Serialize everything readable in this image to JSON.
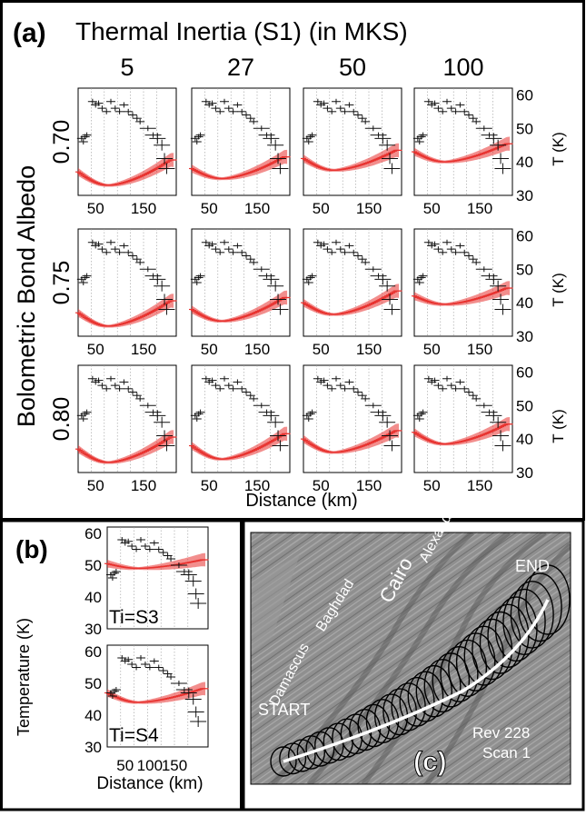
{
  "panel_a": {
    "label": "(a)",
    "title": "Thermal Inertia (S1) (in MKS)",
    "ti_values": [
      "5",
      "27",
      "50",
      "100"
    ],
    "albedo_label": "Bolometric Bond Albedo",
    "albedo_values": [
      "0.70",
      "0.75",
      "0.80"
    ],
    "y_ticks": [
      "60",
      "50",
      "40",
      "30"
    ],
    "y_axis_label": "T (K)",
    "x_ticks": [
      "50",
      "150"
    ],
    "x_axis_label": "Distance (km)"
  },
  "panel_b": {
    "label": "(b)",
    "y_axis_label": "Temperature (K)",
    "y_ticks": [
      "60",
      "50",
      "40",
      "30"
    ],
    "x_ticks": [
      "50",
      "100",
      "150"
    ],
    "x_axis_label": "Distance (km)",
    "plot_labels": [
      "Ti=S3",
      "Ti=S4"
    ]
  },
  "panel_c": {
    "label": "(c)",
    "stripes": [
      "Damascus",
      "Baghdad",
      "Cairo",
      "Alexandria"
    ],
    "start_label": "START",
    "end_label": "END",
    "rev_line1": "Rev 228",
    "rev_line2": "Scan 1"
  },
  "chart_data": {
    "type": "scatter",
    "xlim": [
      0,
      225
    ],
    "ylim": [
      30,
      62
    ],
    "observed": {
      "x": [
        8,
        12,
        16,
        20,
        33,
        40,
        47,
        55,
        65,
        75,
        85,
        95,
        105,
        115,
        125,
        135,
        142,
        160,
        172,
        182,
        192,
        198,
        203
      ],
      "y": [
        47,
        46,
        47.5,
        48,
        58,
        57,
        57.5,
        56,
        55,
        58,
        56,
        55,
        57,
        55,
        54,
        53,
        52,
        50,
        48,
        47,
        45,
        41,
        38
      ]
    },
    "model_grid": [
      {
        "albedo": "0.70",
        "models": [
          {
            "ti": "5",
            "min": 33,
            "ends": [
              37,
              40
            ]
          },
          {
            "ti": "27",
            "min": 35,
            "ends": [
              38,
              41
            ]
          },
          {
            "ti": "50",
            "min": 37.5,
            "ends": [
              41,
              43
            ]
          },
          {
            "ti": "100",
            "min": 40,
            "ends": [
              43,
              45
            ]
          }
        ]
      },
      {
        "albedo": "0.75",
        "models": [
          {
            "ti": "5",
            "min": 33,
            "ends": [
              37,
              40
            ]
          },
          {
            "ti": "27",
            "min": 34.5,
            "ends": [
              38,
              41
            ]
          },
          {
            "ti": "50",
            "min": 36.5,
            "ends": [
              40,
              43
            ]
          },
          {
            "ti": "100",
            "min": 39.5,
            "ends": [
              42,
              44
            ]
          }
        ]
      },
      {
        "albedo": "0.80",
        "models": [
          {
            "ti": "5",
            "min": 33,
            "ends": [
              37,
              40
            ]
          },
          {
            "ti": "27",
            "min": 34,
            "ends": [
              38,
              41
            ]
          },
          {
            "ti": "50",
            "min": 36,
            "ends": [
              40,
              42
            ]
          },
          {
            "ti": "100",
            "min": 38.5,
            "ends": [
              42,
              44
            ]
          }
        ]
      }
    ],
    "model_b": [
      {
        "label": "Ti=S3",
        "min": 49,
        "ends": [
          50.5,
          51.5
        ]
      },
      {
        "label": "Ti=S4",
        "min": 44,
        "ends": [
          47,
          48
        ]
      }
    ]
  },
  "colors": {
    "model": "#e8322f",
    "observed": "#111111",
    "frame": "#000000"
  }
}
